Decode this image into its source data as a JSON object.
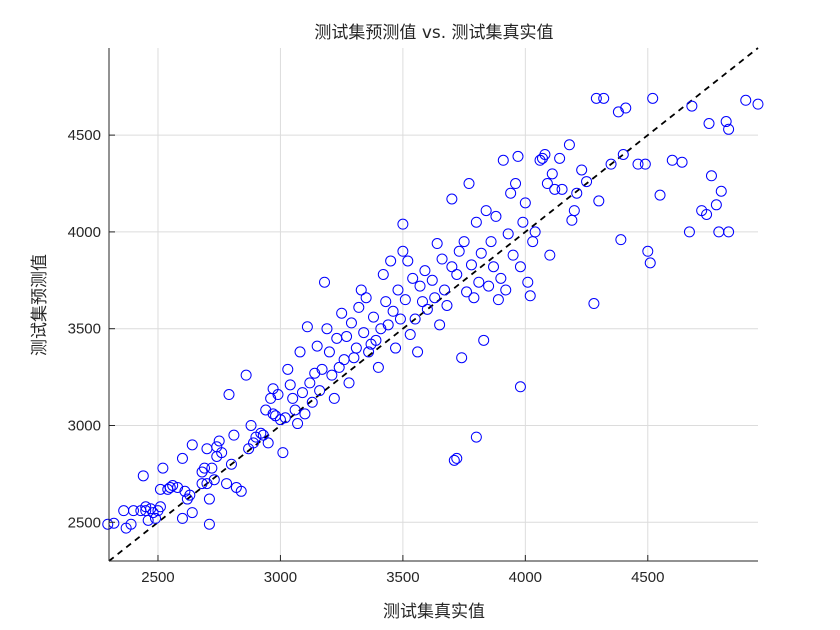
{
  "chart_data": {
    "type": "scatter",
    "title": "测试集预测值 vs. 测试集真实值",
    "xlabel": "测试集真实值",
    "ylabel": "测试集预测值",
    "xlim": [
      2300,
      4950
    ],
    "ylim": [
      2300,
      4950
    ],
    "xticks": [
      2500,
      3000,
      3500,
      4000,
      4500
    ],
    "yticks": [
      2500,
      3000,
      3500,
      4000,
      4500
    ],
    "grid": true,
    "marker_color": "#0000ff",
    "reference_line": {
      "style": "dashed",
      "color": "#000000",
      "from": [
        2300,
        2300
      ],
      "to": [
        4950,
        4950
      ]
    },
    "series": [
      {
        "points": [
          [
            2295,
            2490
          ],
          [
            2320,
            2495
          ],
          [
            2360,
            2560
          ],
          [
            2370,
            2470
          ],
          [
            2390,
            2490
          ],
          [
            2400,
            2560
          ],
          [
            2430,
            2560
          ],
          [
            2440,
            2740
          ],
          [
            2450,
            2580
          ],
          [
            2450,
            2560
          ],
          [
            2460,
            2510
          ],
          [
            2470,
            2570
          ],
          [
            2480,
            2550
          ],
          [
            2490,
            2520
          ],
          [
            2500,
            2560
          ],
          [
            2510,
            2580
          ],
          [
            2510,
            2670
          ],
          [
            2520,
            2780
          ],
          [
            2540,
            2670
          ],
          [
            2550,
            2680
          ],
          [
            2560,
            2690
          ],
          [
            2580,
            2680
          ],
          [
            2600,
            2830
          ],
          [
            2600,
            2520
          ],
          [
            2610,
            2660
          ],
          [
            2620,
            2620
          ],
          [
            2630,
            2640
          ],
          [
            2640,
            2550
          ],
          [
            2640,
            2900
          ],
          [
            2680,
            2760
          ],
          [
            2680,
            2700
          ],
          [
            2690,
            2780
          ],
          [
            2700,
            2700
          ],
          [
            2700,
            2880
          ],
          [
            2710,
            2620
          ],
          [
            2710,
            2490
          ],
          [
            2720,
            2780
          ],
          [
            2730,
            2720
          ],
          [
            2740,
            2890
          ],
          [
            2740,
            2840
          ],
          [
            2750,
            2920
          ],
          [
            2760,
            2860
          ],
          [
            2780,
            2700
          ],
          [
            2790,
            3160
          ],
          [
            2800,
            2800
          ],
          [
            2810,
            2950
          ],
          [
            2820,
            2680
          ],
          [
            2840,
            2660
          ],
          [
            2860,
            3260
          ],
          [
            2870,
            2880
          ],
          [
            2880,
            3000
          ],
          [
            2890,
            2910
          ],
          [
            2900,
            2940
          ],
          [
            2920,
            2960
          ],
          [
            2930,
            2950
          ],
          [
            2940,
            3080
          ],
          [
            2950,
            2910
          ],
          [
            2960,
            3140
          ],
          [
            2970,
            3060
          ],
          [
            2970,
            3190
          ],
          [
            2980,
            3050
          ],
          [
            2990,
            3160
          ],
          [
            3000,
            3030
          ],
          [
            3010,
            2860
          ],
          [
            3020,
            3040
          ],
          [
            3030,
            3290
          ],
          [
            3040,
            3210
          ],
          [
            3050,
            3140
          ],
          [
            3060,
            3080
          ],
          [
            3070,
            3010
          ],
          [
            3080,
            3380
          ],
          [
            3090,
            3170
          ],
          [
            3100,
            3060
          ],
          [
            3110,
            3510
          ],
          [
            3120,
            3220
          ],
          [
            3130,
            3120
          ],
          [
            3140,
            3270
          ],
          [
            3150,
            3410
          ],
          [
            3160,
            3180
          ],
          [
            3170,
            3290
          ],
          [
            3180,
            3740
          ],
          [
            3190,
            3500
          ],
          [
            3200,
            3380
          ],
          [
            3210,
            3260
          ],
          [
            3220,
            3140
          ],
          [
            3230,
            3450
          ],
          [
            3240,
            3300
          ],
          [
            3250,
            3580
          ],
          [
            3260,
            3340
          ],
          [
            3270,
            3460
          ],
          [
            3280,
            3220
          ],
          [
            3290,
            3530
          ],
          [
            3300,
            3350
          ],
          [
            3310,
            3400
          ],
          [
            3320,
            3610
          ],
          [
            3330,
            3700
          ],
          [
            3340,
            3480
          ],
          [
            3350,
            3660
          ],
          [
            3360,
            3380
          ],
          [
            3370,
            3420
          ],
          [
            3380,
            3560
          ],
          [
            3390,
            3440
          ],
          [
            3400,
            3300
          ],
          [
            3410,
            3500
          ],
          [
            3420,
            3780
          ],
          [
            3430,
            3640
          ],
          [
            3440,
            3520
          ],
          [
            3450,
            3850
          ],
          [
            3460,
            3590
          ],
          [
            3470,
            3400
          ],
          [
            3480,
            3700
          ],
          [
            3490,
            3550
          ],
          [
            3500,
            3900
          ],
          [
            3500,
            4040
          ],
          [
            3510,
            3650
          ],
          [
            3520,
            3850
          ],
          [
            3530,
            3470
          ],
          [
            3540,
            3760
          ],
          [
            3550,
            3550
          ],
          [
            3560,
            3380
          ],
          [
            3570,
            3720
          ],
          [
            3580,
            3640
          ],
          [
            3590,
            3800
          ],
          [
            3600,
            3600
          ],
          [
            3620,
            3750
          ],
          [
            3630,
            3660
          ],
          [
            3640,
            3940
          ],
          [
            3650,
            3520
          ],
          [
            3660,
            3860
          ],
          [
            3670,
            3700
          ],
          [
            3680,
            3620
          ],
          [
            3700,
            4170
          ],
          [
            3700,
            3820
          ],
          [
            3710,
            2820
          ],
          [
            3720,
            2830
          ],
          [
            3720,
            3780
          ],
          [
            3730,
            3900
          ],
          [
            3740,
            3350
          ],
          [
            3750,
            3950
          ],
          [
            3760,
            3690
          ],
          [
            3770,
            4250
          ],
          [
            3780,
            3830
          ],
          [
            3790,
            3660
          ],
          [
            3800,
            2940
          ],
          [
            3800,
            4050
          ],
          [
            3810,
            3740
          ],
          [
            3820,
            3890
          ],
          [
            3830,
            3440
          ],
          [
            3840,
            4110
          ],
          [
            3850,
            3720
          ],
          [
            3860,
            3950
          ],
          [
            3870,
            3820
          ],
          [
            3880,
            4080
          ],
          [
            3890,
            3650
          ],
          [
            3900,
            3760
          ],
          [
            3910,
            4370
          ],
          [
            3920,
            3700
          ],
          [
            3930,
            3990
          ],
          [
            3940,
            4200
          ],
          [
            3950,
            3880
          ],
          [
            3960,
            4250
          ],
          [
            3970,
            4390
          ],
          [
            3980,
            3200
          ],
          [
            3980,
            3820
          ],
          [
            3990,
            4050
          ],
          [
            4000,
            4150
          ],
          [
            4010,
            3740
          ],
          [
            4020,
            3670
          ],
          [
            4030,
            3950
          ],
          [
            4040,
            4000
          ],
          [
            4060,
            4370
          ],
          [
            4070,
            4380
          ],
          [
            4080,
            4400
          ],
          [
            4090,
            4250
          ],
          [
            4100,
            3880
          ],
          [
            4110,
            4300
          ],
          [
            4120,
            4220
          ],
          [
            4140,
            4380
          ],
          [
            4150,
            4220
          ],
          [
            4180,
            4450
          ],
          [
            4190,
            4060
          ],
          [
            4200,
            4110
          ],
          [
            4210,
            4200
          ],
          [
            4230,
            4320
          ],
          [
            4250,
            4260
          ],
          [
            4280,
            3630
          ],
          [
            4290,
            4690
          ],
          [
            4300,
            4160
          ],
          [
            4320,
            4690
          ],
          [
            4350,
            4350
          ],
          [
            4380,
            4620
          ],
          [
            4390,
            3960
          ],
          [
            4400,
            4400
          ],
          [
            4410,
            4640
          ],
          [
            4460,
            4350
          ],
          [
            4490,
            4350
          ],
          [
            4500,
            3900
          ],
          [
            4510,
            3840
          ],
          [
            4520,
            4690
          ],
          [
            4550,
            4190
          ],
          [
            4600,
            4370
          ],
          [
            4640,
            4360
          ],
          [
            4670,
            4000
          ],
          [
            4680,
            4650
          ],
          [
            4720,
            4110
          ],
          [
            4740,
            4090
          ],
          [
            4750,
            4560
          ],
          [
            4760,
            4290
          ],
          [
            4780,
            4140
          ],
          [
            4790,
            4000
          ],
          [
            4800,
            4210
          ],
          [
            4820,
            4570
          ],
          [
            4830,
            4530
          ],
          [
            4830,
            4000
          ],
          [
            4900,
            4680
          ],
          [
            4950,
            4660
          ]
        ]
      }
    ]
  }
}
